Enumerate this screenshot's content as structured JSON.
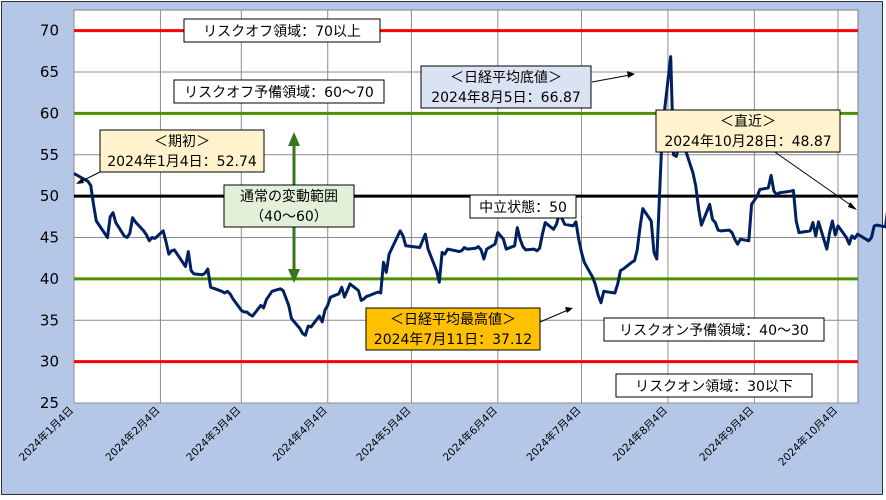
{
  "chart_data": {
    "type": "line",
    "title": "",
    "xlabel": "",
    "ylabel": "",
    "ylim": [
      25,
      72.5
    ],
    "yticks": [
      25,
      30,
      35,
      40,
      45,
      50,
      55,
      60,
      65,
      70
    ],
    "xtick_labels": [
      "2024年1月4日",
      "2024年2月4日",
      "2024年3月4日",
      "2024年4月4日",
      "2024年5月4日",
      "2024年6月4日",
      "2024年7月4日",
      "2024年8月4日",
      "2024年9月4日",
      "2024年10月4日"
    ],
    "grid": true,
    "reference_lines": [
      {
        "value": 70,
        "color": "#ff0000"
      },
      {
        "value": 60,
        "color": "#4e8f00"
      },
      {
        "value": 50,
        "color": "#000000"
      },
      {
        "value": 40,
        "color": "#4e8f00"
      },
      {
        "value": 30,
        "color": "#ff0000"
      }
    ],
    "series": [
      {
        "color": "#002060",
        "points": [
          [
            "2024-01-04",
            52.74
          ],
          [
            "2024-01-09",
            51.8
          ],
          [
            "2024-01-10",
            51.3
          ],
          [
            "2024-01-11",
            49.0
          ],
          [
            "2024-01-12",
            47.0
          ],
          [
            "2024-01-15",
            45.5
          ],
          [
            "2024-01-16",
            45.0
          ],
          [
            "2024-01-17",
            47.5
          ],
          [
            "2024-01-18",
            48.0
          ],
          [
            "2024-01-19",
            46.8
          ],
          [
            "2024-01-22",
            45.2
          ],
          [
            "2024-01-23",
            45.0
          ],
          [
            "2024-01-24",
            45.5
          ],
          [
            "2024-01-25",
            47.4
          ],
          [
            "2024-01-26",
            46.9
          ],
          [
            "2024-01-29",
            45.8
          ],
          [
            "2024-01-30",
            45.3
          ],
          [
            "2024-01-31",
            44.6
          ],
          [
            "2024-02-01",
            45.0
          ],
          [
            "2024-02-02",
            44.9
          ],
          [
            "2024-02-05",
            45.8
          ],
          [
            "2024-02-06",
            44.5
          ],
          [
            "2024-02-07",
            43.0
          ],
          [
            "2024-02-08",
            43.4
          ],
          [
            "2024-02-09",
            43.5
          ],
          [
            "2024-02-13",
            41.5
          ],
          [
            "2024-02-14",
            43.3
          ],
          [
            "2024-02-15",
            41.0
          ],
          [
            "2024-02-16",
            40.6
          ],
          [
            "2024-02-19",
            40.5
          ],
          [
            "2024-02-20",
            40.7
          ],
          [
            "2024-02-21",
            41.2
          ],
          [
            "2024-02-22",
            39.0
          ],
          [
            "2024-02-26",
            38.5
          ],
          [
            "2024-02-27",
            38.3
          ],
          [
            "2024-02-28",
            38.5
          ],
          [
            "2024-02-29",
            38.2
          ],
          [
            "2024-03-01",
            37.6
          ],
          [
            "2024-03-04",
            36.2
          ],
          [
            "2024-03-05",
            36.0
          ],
          [
            "2024-03-06",
            36.0
          ],
          [
            "2024-03-07",
            35.7
          ],
          [
            "2024-03-08",
            35.5
          ],
          [
            "2024-03-11",
            36.8
          ],
          [
            "2024-03-12",
            36.5
          ],
          [
            "2024-03-13",
            37.5
          ],
          [
            "2024-03-14",
            38.0
          ],
          [
            "2024-03-15",
            38.5
          ],
          [
            "2024-03-18",
            38.8
          ],
          [
            "2024-03-19",
            38.6
          ],
          [
            "2024-03-21",
            36.8
          ],
          [
            "2024-03-22",
            35.2
          ],
          [
            "2024-03-25",
            34.0
          ],
          [
            "2024-03-26",
            33.4
          ],
          [
            "2024-03-27",
            33.2
          ],
          [
            "2024-03-28",
            34.3
          ],
          [
            "2024-03-29",
            34.2
          ],
          [
            "2024-04-01",
            35.5
          ],
          [
            "2024-04-02",
            34.8
          ],
          [
            "2024-04-03",
            36.2
          ],
          [
            "2024-04-04",
            36.8
          ],
          [
            "2024-04-05",
            37.8
          ],
          [
            "2024-04-08",
            38.2
          ],
          [
            "2024-04-09",
            39.0
          ],
          [
            "2024-04-10",
            37.8
          ],
          [
            "2024-04-11",
            38.6
          ],
          [
            "2024-04-12",
            39.4
          ],
          [
            "2024-04-15",
            38.6
          ],
          [
            "2024-04-16",
            37.4
          ],
          [
            "2024-04-17",
            37.6
          ],
          [
            "2024-04-18",
            37.9
          ],
          [
            "2024-04-19",
            38.0
          ],
          [
            "2024-04-22",
            38.4
          ],
          [
            "2024-04-23",
            38.3
          ],
          [
            "2024-04-24",
            42.0
          ],
          [
            "2024-04-25",
            40.8
          ],
          [
            "2024-04-26",
            43.0
          ],
          [
            "2024-04-30",
            45.8
          ],
          [
            "2024-05-01",
            45.2
          ],
          [
            "2024-05-02",
            44.0
          ],
          [
            "2024-05-07",
            43.8
          ],
          [
            "2024-05-08",
            44.6
          ],
          [
            "2024-05-09",
            45.4
          ],
          [
            "2024-05-10",
            43.6
          ],
          [
            "2024-05-13",
            41.0
          ],
          [
            "2024-05-14",
            39.6
          ],
          [
            "2024-05-15",
            43.2
          ],
          [
            "2024-05-16",
            43.0
          ],
          [
            "2024-05-17",
            43.6
          ],
          [
            "2024-05-20",
            43.4
          ],
          [
            "2024-05-21",
            43.3
          ],
          [
            "2024-05-22",
            43.4
          ],
          [
            "2024-05-23",
            43.8
          ],
          [
            "2024-05-24",
            43.6
          ],
          [
            "2024-05-27",
            43.7
          ],
          [
            "2024-05-28",
            43.9
          ],
          [
            "2024-05-29",
            43.5
          ],
          [
            "2024-05-30",
            42.4
          ],
          [
            "2024-05-31",
            43.6
          ],
          [
            "2024-06-03",
            44.2
          ],
          [
            "2024-06-04",
            45.6
          ],
          [
            "2024-06-05",
            45.2
          ],
          [
            "2024-06-06",
            44.8
          ],
          [
            "2024-06-07",
            43.6
          ],
          [
            "2024-06-10",
            44.0
          ],
          [
            "2024-06-11",
            46.2
          ],
          [
            "2024-06-12",
            44.8
          ],
          [
            "2024-06-13",
            43.9
          ],
          [
            "2024-06-14",
            43.5
          ],
          [
            "2024-06-17",
            43.6
          ],
          [
            "2024-06-18",
            43.4
          ],
          [
            "2024-06-19",
            43.7
          ],
          [
            "2024-06-20",
            45.4
          ],
          [
            "2024-06-21",
            46.8
          ],
          [
            "2024-06-24",
            46.0
          ],
          [
            "2024-06-25",
            46.6
          ],
          [
            "2024-06-26",
            47.8
          ],
          [
            "2024-06-27",
            47.3
          ],
          [
            "2024-06-28",
            46.6
          ],
          [
            "2024-07-01",
            46.4
          ],
          [
            "2024-07-02",
            46.9
          ],
          [
            "2024-07-03",
            44.8
          ],
          [
            "2024-07-04",
            43.2
          ],
          [
            "2024-07-05",
            42.0
          ],
          [
            "2024-07-08",
            40.2
          ],
          [
            "2024-07-09",
            39.3
          ],
          [
            "2024-07-10",
            38.0
          ],
          [
            "2024-07-11",
            37.12
          ],
          [
            "2024-07-12",
            38.5
          ],
          [
            "2024-07-16",
            38.3
          ],
          [
            "2024-07-17",
            39.4
          ],
          [
            "2024-07-18",
            41.0
          ],
          [
            "2024-07-19",
            41.2
          ],
          [
            "2024-07-22",
            42.0
          ],
          [
            "2024-07-23",
            42.2
          ],
          [
            "2024-07-24",
            43.5
          ],
          [
            "2024-07-25",
            46.2
          ],
          [
            "2024-07-26",
            48.5
          ],
          [
            "2024-07-29",
            47.0
          ],
          [
            "2024-07-30",
            43.2
          ],
          [
            "2024-07-31",
            42.4
          ],
          [
            "2024-08-01",
            50.0
          ],
          [
            "2024-08-02",
            58.0
          ],
          [
            "2024-08-05",
            66.87
          ],
          [
            "2024-08-06",
            55.0
          ],
          [
            "2024-08-07",
            54.8
          ],
          [
            "2024-08-08",
            56.5
          ],
          [
            "2024-08-09",
            56.9
          ],
          [
            "2024-08-13",
            52.8
          ],
          [
            "2024-08-14",
            51.2
          ],
          [
            "2024-08-15",
            48.5
          ],
          [
            "2024-08-16",
            46.5
          ],
          [
            "2024-08-19",
            49.0
          ],
          [
            "2024-08-20",
            47.2
          ],
          [
            "2024-08-21",
            46.8
          ],
          [
            "2024-08-22",
            45.9
          ],
          [
            "2024-08-23",
            45.8
          ],
          [
            "2024-08-26",
            45.9
          ],
          [
            "2024-08-27",
            45.6
          ],
          [
            "2024-08-28",
            44.8
          ],
          [
            "2024-08-29",
            44.2
          ],
          [
            "2024-08-30",
            44.8
          ],
          [
            "2024-09-02",
            44.6
          ],
          [
            "2024-09-03",
            49.0
          ],
          [
            "2024-09-04",
            49.5
          ],
          [
            "2024-09-05",
            50.0
          ],
          [
            "2024-09-06",
            50.8
          ],
          [
            "2024-09-09",
            51.0
          ],
          [
            "2024-09-10",
            52.5
          ],
          [
            "2024-09-11",
            50.6
          ],
          [
            "2024-09-12",
            50.2
          ],
          [
            "2024-09-13",
            50.4
          ],
          [
            "2024-09-17",
            50.6
          ],
          [
            "2024-09-18",
            50.7
          ],
          [
            "2024-09-19",
            47.0
          ],
          [
            "2024-09-20",
            45.6
          ],
          [
            "2024-09-24",
            45.8
          ],
          [
            "2024-09-25",
            46.8
          ],
          [
            "2024-09-26",
            45.2
          ],
          [
            "2024-09-27",
            46.9
          ],
          [
            "2024-09-30",
            43.6
          ],
          [
            "2024-10-01",
            45.6
          ],
          [
            "2024-10-02",
            47.0
          ],
          [
            "2024-10-03",
            45.3
          ],
          [
            "2024-10-04",
            46.4
          ],
          [
            "2024-10-07",
            45.0
          ],
          [
            "2024-10-08",
            44.2
          ],
          [
            "2024-10-09",
            45.2
          ],
          [
            "2024-10-10",
            44.9
          ],
          [
            "2024-10-11",
            45.4
          ],
          [
            "2024-10-15",
            44.6
          ],
          [
            "2024-10-16",
            45.0
          ],
          [
            "2024-10-17",
            46.4
          ],
          [
            "2024-10-18",
            46.5
          ],
          [
            "2024-10-21",
            46.3
          ],
          [
            "2024-10-22",
            48.8
          ],
          [
            "2024-10-23",
            49.8
          ],
          [
            "2024-10-24",
            50.4
          ],
          [
            "2024-10-25",
            49.6
          ],
          [
            "2024-10-28",
            48.87
          ]
        ]
      }
    ],
    "annotations": {
      "riskoff_zone": "リスクオフ領域：70以上",
      "riskoff_reserve": "リスクオフ予備領域：60～70",
      "bottom_title": "＜日経平均底値＞",
      "bottom_value": "2024年8月5日：66.87",
      "start_title": "＜期初＞",
      "start_value": "2024年1月4日：52.74",
      "recent_title": "＜直近＞",
      "recent_value": "2024年10月28日：48.87",
      "normal_range_title": "通常の変動範囲",
      "normal_range_value": "（40～60）",
      "neutral": "中立状態：50",
      "high_title": "＜日経平均最高値＞",
      "high_value": "2024年7月11日：37.12",
      "riskon_reserve": "リスクオン予備領域：40～30",
      "riskon_zone": "リスクオン領域：30以下"
    }
  }
}
